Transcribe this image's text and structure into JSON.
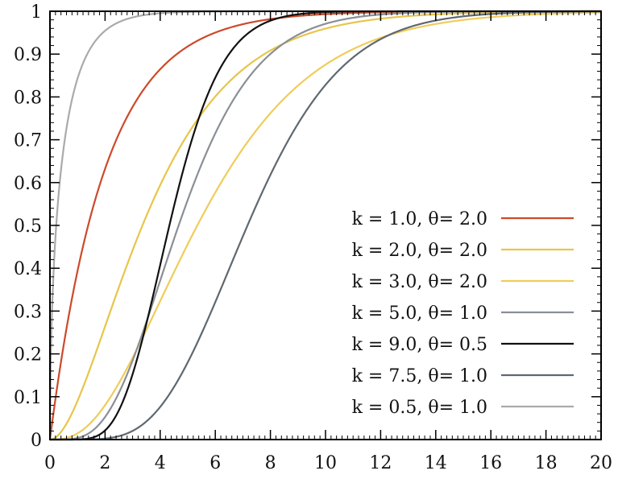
{
  "chart_data": {
    "type": "line",
    "title": "",
    "xlabel": "",
    "ylabel": "",
    "xlim": [
      0,
      20
    ],
    "ylim": [
      0,
      1
    ],
    "xticks": [
      "0",
      "2",
      "4",
      "6",
      "8",
      "10",
      "12",
      "14",
      "16",
      "18",
      "20"
    ],
    "yticks": [
      "0",
      "0.1",
      "0.2",
      "0.3",
      "0.4",
      "0.5",
      "0.6",
      "0.7",
      "0.8",
      "0.9",
      "1"
    ],
    "grid": false,
    "legend_position": "bottom-right",
    "series": [
      {
        "name": "k = 1.0, θ= 2.0",
        "color": "#cc4a2a",
        "k": 1.0,
        "theta": 2.0,
        "x": [
          0,
          1,
          2,
          3,
          4,
          5,
          6,
          8,
          10,
          12,
          20
        ],
        "y": [
          0,
          0.39,
          0.63,
          0.78,
          0.86,
          0.92,
          0.95,
          0.98,
          0.99,
          1.0,
          1.0
        ]
      },
      {
        "name": "k = 2.0, θ= 2.0",
        "color": "#e8c54a",
        "k": 2.0,
        "theta": 2.0,
        "x": [
          0,
          1,
          2,
          3,
          4,
          5,
          6,
          8,
          10,
          12,
          14,
          20
        ],
        "y": [
          0,
          0.09,
          0.26,
          0.44,
          0.59,
          0.71,
          0.8,
          0.91,
          0.96,
          0.98,
          0.99,
          1.0
        ]
      },
      {
        "name": "k = 3.0, θ= 2.0",
        "color": "#f0cc5a",
        "k": 3.0,
        "theta": 2.0,
        "x": [
          0,
          1,
          2,
          3,
          4,
          5,
          6,
          8,
          10,
          12,
          14,
          16,
          20
        ],
        "y": [
          0,
          0.01,
          0.08,
          0.19,
          0.32,
          0.46,
          0.58,
          0.76,
          0.88,
          0.94,
          0.97,
          0.99,
          1.0
        ]
      },
      {
        "name": "k = 5.0, θ= 1.0",
        "color": "#8a8f96",
        "k": 5.0,
        "theta": 1.0,
        "x": [
          0,
          1,
          2,
          3,
          4,
          5,
          6,
          7,
          8,
          10,
          12,
          20
        ],
        "y": [
          0,
          0.004,
          0.05,
          0.18,
          0.37,
          0.56,
          0.71,
          0.83,
          0.9,
          0.97,
          0.99,
          1.0
        ]
      },
      {
        "name": "k = 9.0, θ= 0.5",
        "color": "#111111",
        "k": 9.0,
        "theta": 0.5,
        "x": [
          0,
          1,
          2,
          3,
          4,
          5,
          6,
          7,
          8,
          10,
          20
        ],
        "y": [
          0,
          0.0002,
          0.02,
          0.15,
          0.41,
          0.67,
          0.85,
          0.94,
          0.98,
          1.0,
          1.0
        ]
      },
      {
        "name": "k = 7.5, θ= 1.0",
        "color": "#5f6870",
        "k": 7.5,
        "theta": 1.0,
        "x": [
          0,
          2,
          3,
          4,
          5,
          6,
          7,
          8,
          9,
          10,
          12,
          14,
          16,
          20
        ],
        "y": [
          0,
          0.002,
          0.02,
          0.07,
          0.18,
          0.33,
          0.49,
          0.64,
          0.76,
          0.85,
          0.95,
          0.98,
          0.99,
          1.0
        ]
      },
      {
        "name": "k = 0.5, θ= 1.0",
        "color": "#aaaaaa",
        "k": 0.5,
        "theta": 1.0,
        "x": [
          0,
          0.1,
          0.25,
          0.5,
          1,
          1.5,
          2,
          3,
          4,
          20
        ],
        "y": [
          0,
          0.35,
          0.52,
          0.68,
          0.84,
          0.92,
          0.95,
          0.99,
          1.0,
          1.0
        ]
      }
    ]
  }
}
